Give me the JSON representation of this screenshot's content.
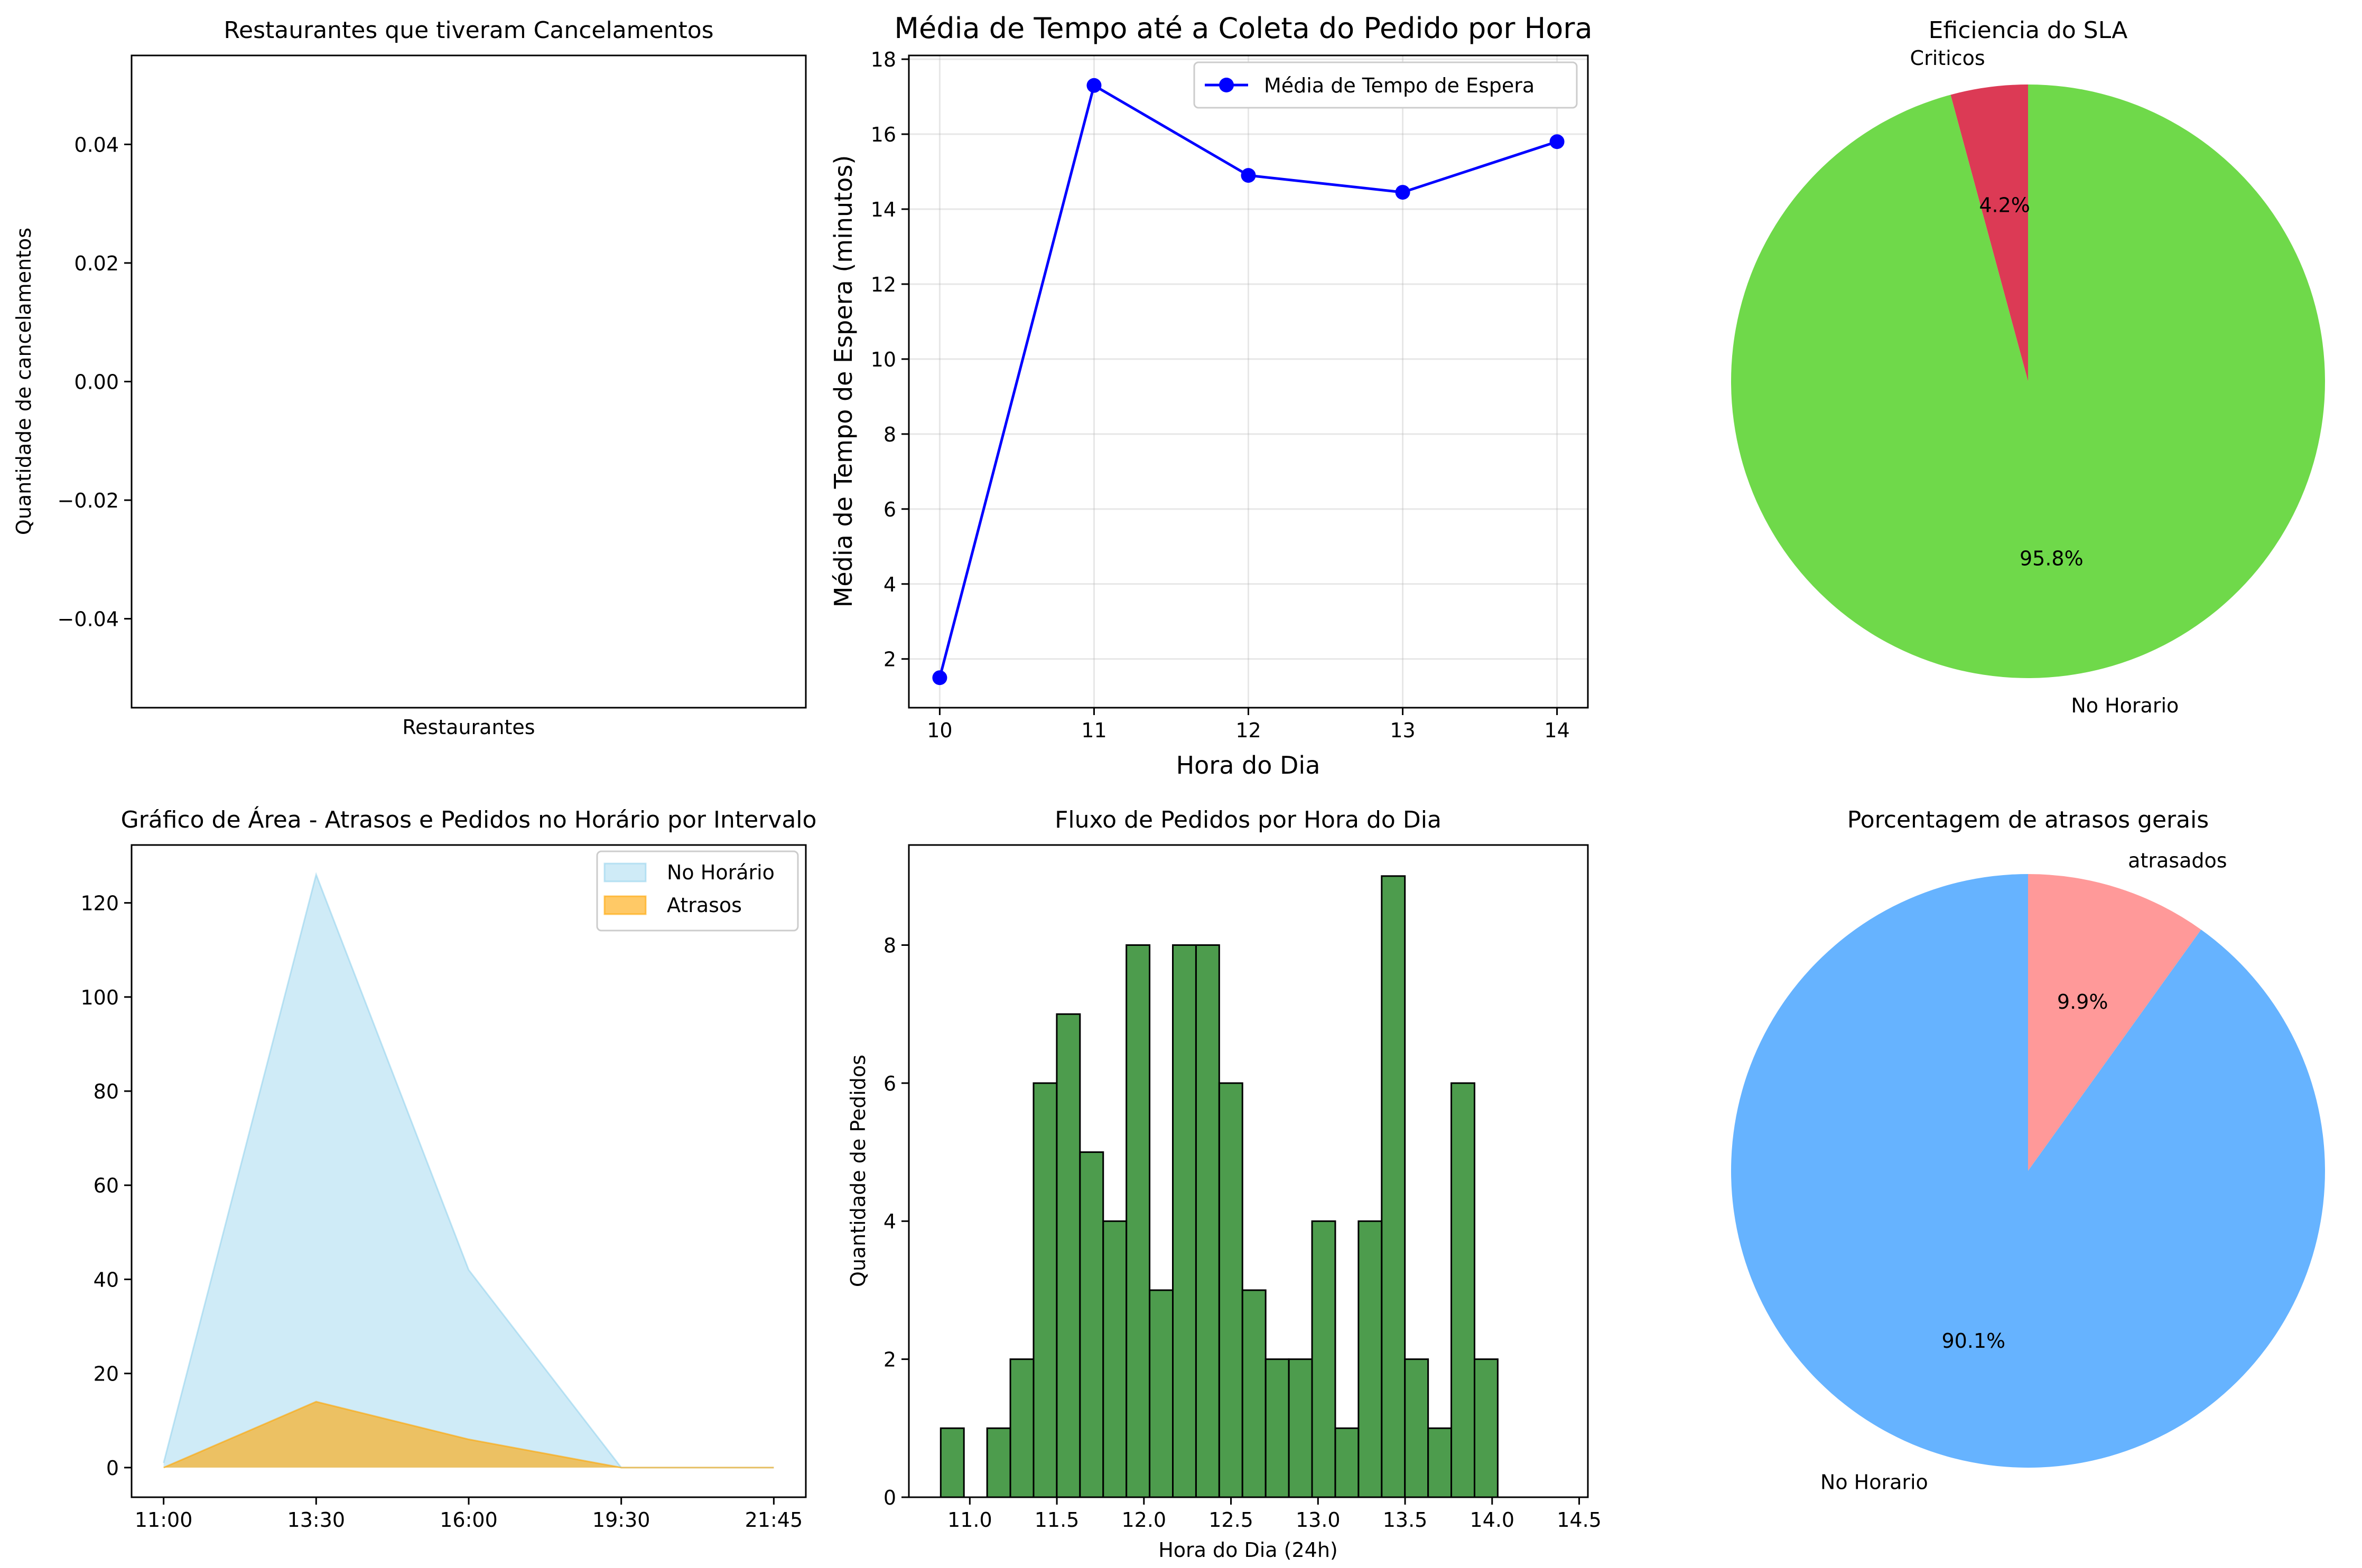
{
  "chart_data": [
    {
      "type": "bar",
      "title": "Restaurantes que tiveram Cancelamentos",
      "xlabel": "Restaurantes",
      "ylabel": "Quantidade de cancelamentos",
      "categories": [],
      "values": [],
      "ylim": [
        -0.055,
        0.055
      ],
      "yticks": [
        "0.04",
        "0.02",
        "0.00",
        "−0.02",
        "−0.04"
      ],
      "ytick_values": [
        0.04,
        0.02,
        0.0,
        -0.02,
        -0.04
      ]
    },
    {
      "type": "line",
      "title": "Média de Tempo até a Coleta do Pedido por Hora",
      "xlabel": "Hora do Dia",
      "ylabel": "Média de Tempo de Espera (minutos)",
      "x": [
        10,
        11,
        12,
        13,
        14
      ],
      "series": [
        {
          "name": "Média de Tempo de Espera",
          "values": [
            1.5,
            17.3,
            14.9,
            14.45,
            15.8
          ],
          "color": "#0000ff"
        }
      ],
      "xlim": [
        9.8,
        14.2
      ],
      "ylim": [
        0.7,
        18.1
      ],
      "xticks": [
        10,
        11,
        12,
        13,
        14
      ],
      "yticks": [
        2,
        4,
        6,
        8,
        10,
        12,
        14,
        16,
        18
      ],
      "grid": true,
      "legend": "top-right"
    },
    {
      "type": "pie",
      "title": "Eficiencia do SLA",
      "labels": [
        "Criticos",
        "No Horario"
      ],
      "values": [
        4.2,
        95.8
      ],
      "pct_labels": [
        "4.2%",
        "95.8%"
      ],
      "colors": [
        "#dc3a55",
        "#6fd94a"
      ]
    },
    {
      "type": "area",
      "title": "Gráfico de Área - Atrasos e Pedidos no Horário por Intervalo",
      "categories": [
        "11:00",
        "13:30",
        "16:00",
        "19:30",
        "21:45"
      ],
      "series": [
        {
          "name": "No Horário",
          "values": [
            1,
            126,
            42,
            0,
            0
          ],
          "color": "#87ceeb"
        },
        {
          "name": "Atrasos",
          "values": [
            0,
            14,
            6,
            0,
            0
          ],
          "color": "#ffa500"
        }
      ],
      "ylim": [
        -6.3,
        132.3
      ],
      "yticks": [
        0,
        20,
        40,
        60,
        80,
        100,
        120
      ],
      "legend": "top-right"
    },
    {
      "type": "bar",
      "subtype": "histogram",
      "title": "Fluxo de Pedidos por Hora do Dia",
      "xlabel": "Hora do Dia (24h)",
      "ylabel": "Quantidade de Pedidos",
      "bin_start": 10.833,
      "bin_width": 0.1333,
      "values": [
        1,
        0,
        1,
        2,
        6,
        7,
        5,
        4,
        8,
        3,
        8,
        8,
        6,
        3,
        2,
        2,
        4,
        1,
        4,
        9,
        2,
        1,
        6,
        2
      ],
      "color": "#2e8b2e",
      "xlim": [
        10.65,
        14.55
      ],
      "ylim": [
        0,
        9.45
      ],
      "xticks": [
        "11.0",
        "11.5",
        "12.0",
        "12.5",
        "13.0",
        "13.5",
        "14.0",
        "14.5"
      ],
      "xtick_values": [
        11.0,
        11.5,
        12.0,
        12.5,
        13.0,
        13.5,
        14.0,
        14.5
      ],
      "yticks": [
        0,
        2,
        4,
        6,
        8
      ]
    },
    {
      "type": "pie",
      "title": "Porcentagem de atrasos gerais",
      "labels": [
        "atrasados",
        "No Horario"
      ],
      "values": [
        9.9,
        90.1
      ],
      "pct_labels": [
        "9.9%",
        "90.1%"
      ],
      "colors": [
        "#ff9999",
        "#66b3ff"
      ]
    }
  ]
}
